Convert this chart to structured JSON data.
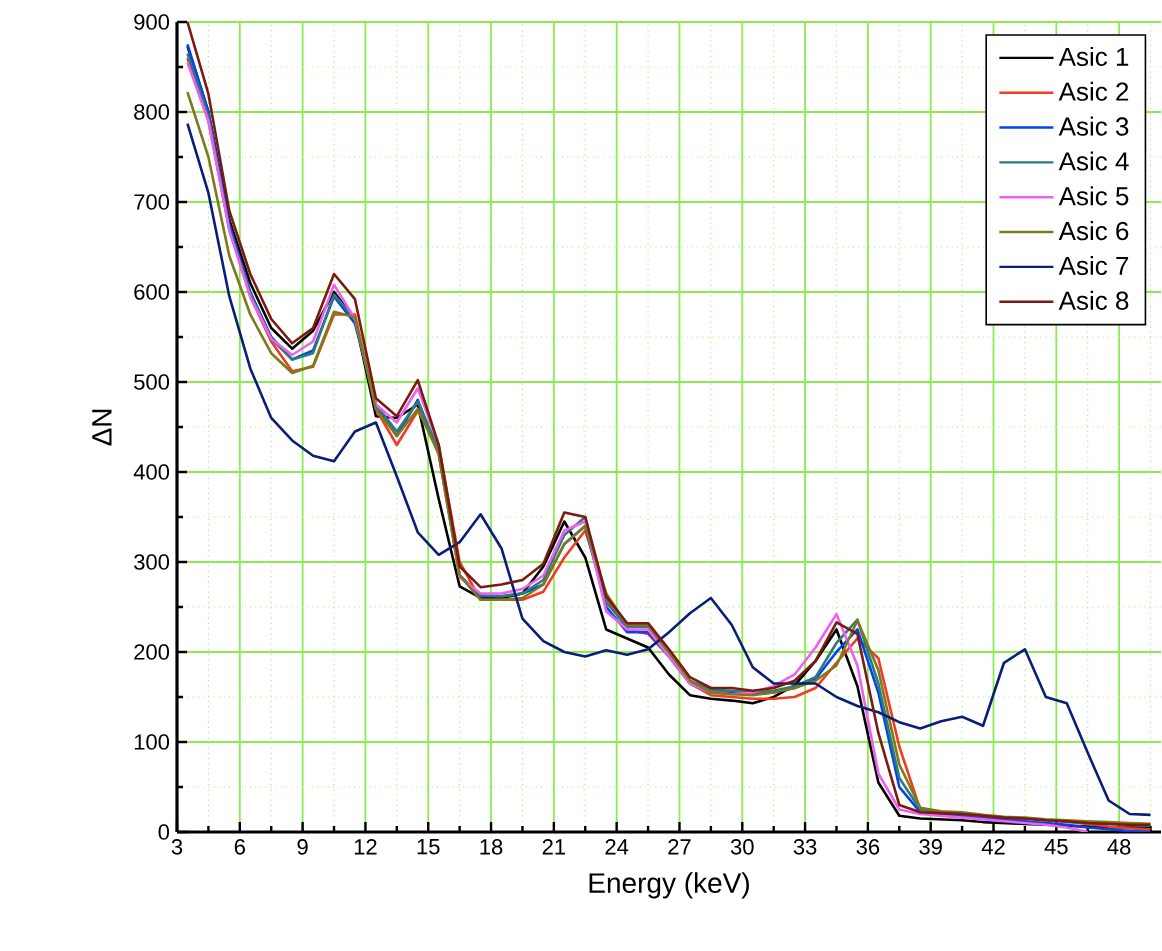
{
  "chart_data": {
    "type": "line",
    "xlabel": "Energy (keV)",
    "ylabel": "ΔN",
    "x": [
      3.5,
      4.5,
      5.5,
      6.5,
      7.5,
      8.5,
      9.5,
      10.5,
      11.5,
      12.5,
      13.5,
      14.5,
      15.5,
      16.5,
      17.5,
      18.5,
      19.5,
      20.5,
      21.5,
      22.5,
      23.5,
      24.5,
      25.5,
      26.5,
      27.5,
      28.5,
      29.5,
      30.5,
      31.5,
      32.5,
      33.5,
      34.5,
      35.5,
      36.5,
      37.5,
      38.5,
      39.5,
      40.5,
      41.5,
      42.5,
      43.5,
      44.5,
      45.5,
      46.5,
      47.5,
      48.5,
      49.5
    ],
    "series": [
      {
        "name": "Asic 1",
        "color": "#000000",
        "values": [
          873,
          800,
          680,
          610,
          560,
          537,
          557,
          600,
          570,
          462,
          460,
          475,
          370,
          273,
          260,
          260,
          265,
          295,
          345,
          305,
          225,
          215,
          205,
          175,
          152,
          148,
          146,
          143,
          150,
          163,
          190,
          225,
          162,
          55,
          18,
          15,
          14,
          13,
          11,
          10,
          9,
          8,
          7,
          6,
          5,
          5,
          5
        ]
      },
      {
        "name": "Asic 2",
        "color": "#f03c20",
        "values": [
          860,
          790,
          670,
          595,
          545,
          512,
          517,
          575,
          575,
          470,
          430,
          468,
          430,
          300,
          258,
          258,
          258,
          267,
          305,
          335,
          260,
          225,
          220,
          195,
          165,
          152,
          150,
          148,
          148,
          150,
          160,
          188,
          215,
          193,
          95,
          25,
          22,
          20,
          18,
          16,
          15,
          13,
          11,
          9,
          6,
          4,
          3
        ]
      },
      {
        "name": "Asic 3",
        "color": "#0044ee",
        "values": [
          875,
          800,
          675,
          600,
          550,
          525,
          535,
          595,
          565,
          475,
          440,
          480,
          420,
          285,
          262,
          262,
          265,
          275,
          320,
          340,
          250,
          222,
          222,
          195,
          165,
          155,
          155,
          153,
          155,
          160,
          170,
          200,
          225,
          155,
          50,
          22,
          20,
          18,
          16,
          14,
          12,
          10,
          8,
          5,
          3,
          1,
          0
        ]
      },
      {
        "name": "Asic 4",
        "color": "#2e7b7b",
        "values": [
          865,
          795,
          670,
          598,
          548,
          525,
          532,
          597,
          570,
          475,
          445,
          478,
          425,
          285,
          263,
          262,
          265,
          280,
          330,
          350,
          255,
          228,
          228,
          198,
          168,
          158,
          157,
          155,
          157,
          162,
          172,
          210,
          236,
          165,
          60,
          25,
          22,
          20,
          18,
          16,
          15,
          13,
          12,
          10,
          9,
          8,
          7
        ]
      },
      {
        "name": "Asic 5",
        "color": "#f060f0",
        "values": [
          855,
          790,
          668,
          595,
          548,
          530,
          545,
          608,
          570,
          475,
          455,
          493,
          430,
          283,
          265,
          265,
          270,
          285,
          335,
          345,
          245,
          225,
          225,
          195,
          165,
          155,
          153,
          155,
          162,
          175,
          205,
          242,
          185,
          65,
          25,
          20,
          18,
          16,
          14,
          12,
          10,
          8,
          5,
          0,
          null,
          null,
          null
        ]
      },
      {
        "name": "Asic 6",
        "color": "#7b7b1e",
        "values": [
          822,
          750,
          640,
          575,
          532,
          510,
          518,
          578,
          572,
          470,
          440,
          470,
          420,
          285,
          258,
          258,
          260,
          275,
          320,
          340,
          265,
          230,
          230,
          200,
          168,
          155,
          153,
          152,
          155,
          160,
          168,
          185,
          235,
          180,
          75,
          27,
          23,
          22,
          19,
          17,
          16,
          14,
          13,
          12,
          11,
          10,
          9
        ]
      },
      {
        "name": "Asic 7",
        "color": "#0a1e78",
        "values": [
          787,
          710,
          595,
          515,
          460,
          435,
          418,
          412,
          445,
          455,
          395,
          333,
          308,
          322,
          353,
          315,
          237,
          212,
          200,
          195,
          202,
          197,
          203,
          222,
          243,
          260,
          230,
          183,
          165,
          165,
          165,
          150,
          140,
          133,
          122,
          115,
          123,
          128,
          118,
          188,
          203,
          150,
          143,
          88,
          35,
          20,
          19
        ]
      },
      {
        "name": "Asic 8",
        "color": "#7a1a10",
        "values": [
          900,
          820,
          690,
          620,
          570,
          543,
          560,
          620,
          592,
          482,
          462,
          502,
          430,
          295,
          272,
          275,
          280,
          298,
          355,
          350,
          262,
          232,
          232,
          203,
          172,
          160,
          160,
          157,
          160,
          168,
          190,
          233,
          220,
          110,
          30,
          22,
          21,
          20,
          18,
          16,
          15,
          13,
          12,
          10,
          9,
          8,
          8
        ]
      }
    ],
    "xlim": [
      3,
      50
    ],
    "ylim": [
      0,
      900
    ],
    "xticks": [
      3,
      {
        "value": 4.5,
        "label": null
      },
      6,
      {
        "value": 7.5,
        "label": null
      },
      9,
      {
        "value": 10.5,
        "label": null
      },
      12,
      {
        "value": 13.5,
        "label": null
      },
      15,
      {
        "value": 16.5,
        "label": null
      },
      18,
      {
        "value": 19.5,
        "label": null
      },
      21,
      {
        "value": 22.5,
        "label": null
      },
      24,
      {
        "value": 25.5,
        "label": null
      },
      27,
      {
        "value": 28.5,
        "label": null
      },
      30,
      {
        "value": 31.5,
        "label": null
      },
      33,
      {
        "value": 34.5,
        "label": null
      },
      36,
      {
        "value": 37.5,
        "label": null
      },
      39,
      {
        "value": 40.5,
        "label": null
      },
      42,
      {
        "value": 43.5,
        "label": null
      },
      45,
      {
        "value": 46.5,
        "label": null
      },
      48,
      {
        "value": 49.5,
        "label": null
      }
    ],
    "yticks": [
      0,
      {
        "value": 50,
        "label": null
      },
      100,
      {
        "value": 150,
        "label": null
      },
      200,
      {
        "value": 250,
        "label": null
      },
      300,
      {
        "value": 350,
        "label": null
      },
      400,
      {
        "value": 450,
        "label": null
      },
      500,
      {
        "value": 550,
        "label": null
      },
      600,
      {
        "value": 650,
        "label": null
      },
      700,
      {
        "value": 750,
        "label": null
      },
      800,
      {
        "value": 850,
        "label": null
      },
      900
    ],
    "grid": true,
    "legend": "top right",
    "marker": "none",
    "line_style": "solid"
  }
}
